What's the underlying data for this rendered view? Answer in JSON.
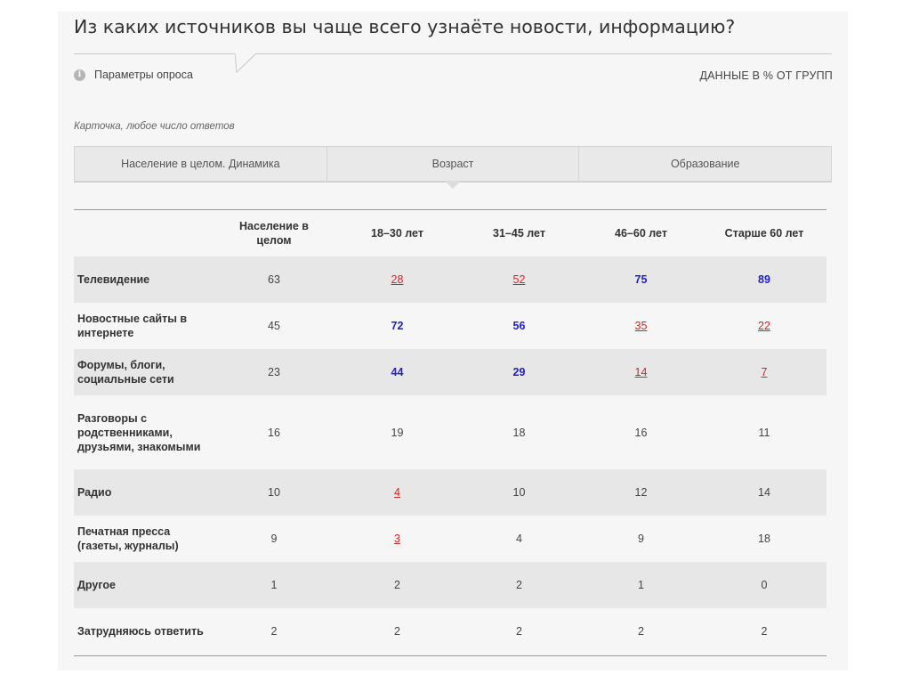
{
  "title": "Из каких источников вы чаще всего узнаёте новости, информацию?",
  "params_label": "Параметры опроса",
  "units_label": "ДАННЫЕ В % ОТ ГРУПП",
  "card_note": "Карточка, любое число ответов",
  "tabs": [
    {
      "label": "Население в целом. Динамика",
      "active": false
    },
    {
      "label": "Возраст",
      "active": true
    },
    {
      "label": "Образование",
      "active": false
    }
  ],
  "table": {
    "headers": [
      "",
      "Население в целом",
      "18–30 лет",
      "31–45 лет",
      "46–60 лет",
      "Старше 60 лет"
    ],
    "rows": [
      {
        "label": "Телевидение",
        "cells": [
          {
            "v": "63",
            "s": ""
          },
          {
            "v": "28",
            "s": "lo"
          },
          {
            "v": "52",
            "s": "lo"
          },
          {
            "v": "75",
            "s": "hi"
          },
          {
            "v": "89",
            "s": "hi"
          }
        ]
      },
      {
        "label": "Новостные сайты в интернете",
        "cells": [
          {
            "v": "45",
            "s": ""
          },
          {
            "v": "72",
            "s": "hi"
          },
          {
            "v": "56",
            "s": "hi"
          },
          {
            "v": "35",
            "s": "lo"
          },
          {
            "v": "22",
            "s": "lo"
          }
        ]
      },
      {
        "label": "Форумы, блоги, социальные сети",
        "cells": [
          {
            "v": "23",
            "s": ""
          },
          {
            "v": "44",
            "s": "hi"
          },
          {
            "v": "29",
            "s": "hi"
          },
          {
            "v": "14",
            "s": "lo"
          },
          {
            "v": "7",
            "s": "lo"
          }
        ]
      },
      {
        "label": "Разговоры с родственниками, друзьями, знакомыми",
        "cells": [
          {
            "v": "16",
            "s": ""
          },
          {
            "v": "19",
            "s": ""
          },
          {
            "v": "18",
            "s": ""
          },
          {
            "v": "16",
            "s": ""
          },
          {
            "v": "11",
            "s": ""
          }
        ]
      },
      {
        "label": "Радио",
        "cells": [
          {
            "v": "10",
            "s": ""
          },
          {
            "v": "4",
            "s": "lo"
          },
          {
            "v": "10",
            "s": ""
          },
          {
            "v": "12",
            "s": ""
          },
          {
            "v": "14",
            "s": ""
          }
        ]
      },
      {
        "label": "Печатная пресса (газеты, журналы)",
        "cells": [
          {
            "v": "9",
            "s": ""
          },
          {
            "v": "3",
            "s": "lo"
          },
          {
            "v": "4",
            "s": ""
          },
          {
            "v": "9",
            "s": ""
          },
          {
            "v": "18",
            "s": ""
          }
        ]
      },
      {
        "label": "Другое",
        "cells": [
          {
            "v": "1",
            "s": ""
          },
          {
            "v": "2",
            "s": ""
          },
          {
            "v": "2",
            "s": ""
          },
          {
            "v": "1",
            "s": ""
          },
          {
            "v": "0",
            "s": ""
          }
        ]
      },
      {
        "label": "Затрудняюсь ответить",
        "cells": [
          {
            "v": "2",
            "s": ""
          },
          {
            "v": "2",
            "s": ""
          },
          {
            "v": "2",
            "s": ""
          },
          {
            "v": "2",
            "s": ""
          },
          {
            "v": "2",
            "s": ""
          }
        ]
      }
    ]
  },
  "colors": {
    "high": "#1f1fcc",
    "low": "#e02020",
    "row_shade": "#e7e7e7"
  },
  "icons": {
    "params": "info-icon"
  }
}
